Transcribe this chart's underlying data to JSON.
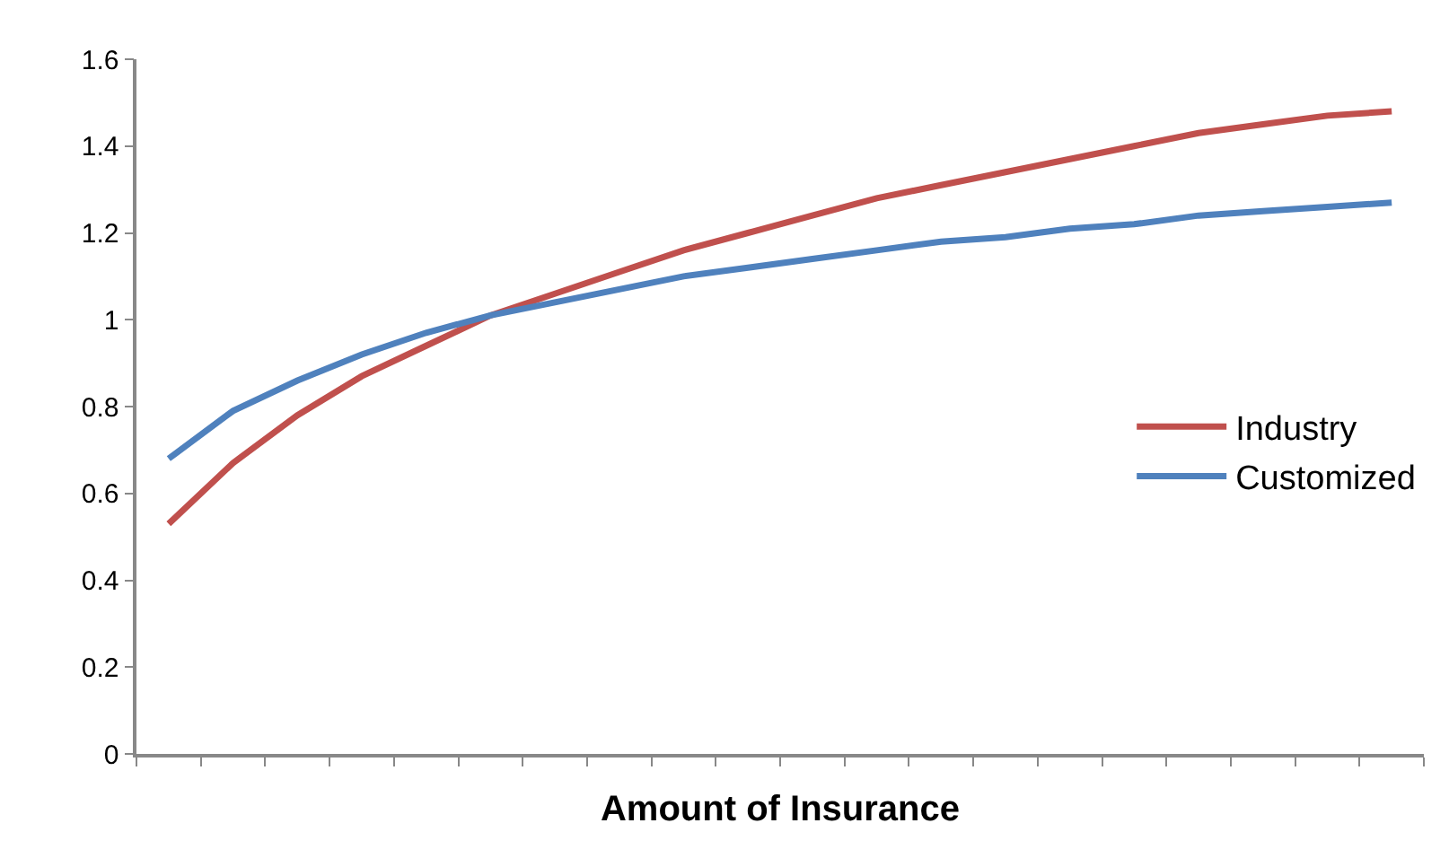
{
  "chart_data": {
    "type": "line",
    "xlabel": "Amount of Insurance",
    "categories": [
      null,
      null,
      null,
      null,
      null,
      null,
      null,
      null,
      null,
      null,
      null,
      null,
      null,
      null,
      null,
      null,
      null,
      null,
      null,
      null
    ],
    "series": [
      {
        "name": "Industry",
        "color": "#c0504d",
        "values": [
          0.53,
          0.67,
          0.78,
          0.87,
          0.94,
          1.01,
          1.06,
          1.11,
          1.16,
          1.2,
          1.24,
          1.28,
          1.31,
          1.34,
          1.37,
          1.4,
          1.43,
          1.45,
          1.47,
          1.48
        ]
      },
      {
        "name": "Customized",
        "color": "#4f81bd",
        "values": [
          0.68,
          0.79,
          0.86,
          0.92,
          0.97,
          1.01,
          1.04,
          1.07,
          1.1,
          1.12,
          1.14,
          1.16,
          1.18,
          1.19,
          1.21,
          1.22,
          1.24,
          1.25,
          1.26,
          1.27
        ]
      }
    ],
    "ylim": [
      0,
      1.6
    ],
    "yticks": [
      0,
      0.2,
      0.4,
      0.6,
      0.8,
      1,
      1.2,
      1.4,
      1.6
    ],
    "grid": false,
    "legend": "right",
    "marker": "none",
    "line_style": "solid"
  }
}
